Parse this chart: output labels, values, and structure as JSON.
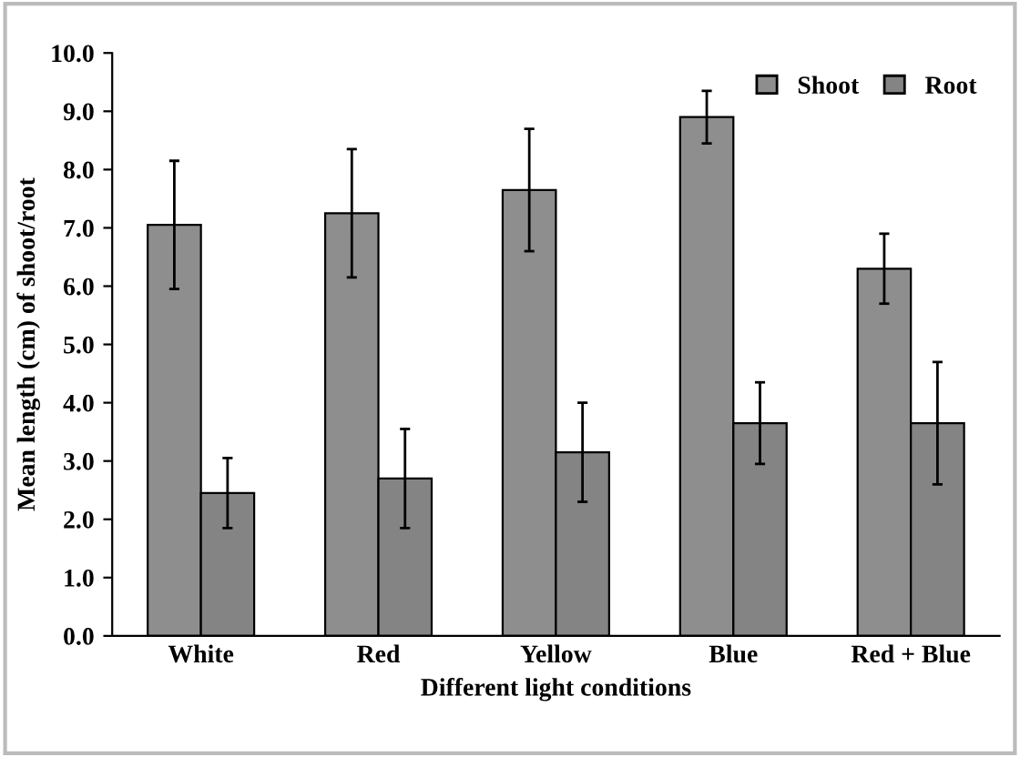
{
  "chart_data": {
    "type": "bar",
    "xlabel": "Different light conditions",
    "ylabel": "Mean length (cm) of shoot/root",
    "categories": [
      "White",
      "Red",
      "Yellow",
      "Blue",
      "Red + Blue"
    ],
    "series": [
      {
        "name": "Shoot",
        "color": "#8e8e8e",
        "values": [
          7.05,
          7.25,
          7.65,
          8.9,
          6.3
        ],
        "errors": [
          1.1,
          1.1,
          1.05,
          0.45,
          0.6
        ]
      },
      {
        "name": "Root",
        "color": "#848484",
        "values": [
          2.45,
          2.7,
          3.15,
          3.65,
          3.65
        ],
        "errors": [
          0.6,
          0.85,
          0.85,
          0.7,
          1.05
        ]
      }
    ],
    "ylim": [
      0,
      10
    ],
    "yticks": [
      {
        "value": 0,
        "label": "0.0"
      },
      {
        "value": 1,
        "label": "1.0"
      },
      {
        "value": 2,
        "label": "2.0"
      },
      {
        "value": 3,
        "label": "3.0"
      },
      {
        "value": 4,
        "label": "4.0"
      },
      {
        "value": 5,
        "label": "5.0"
      },
      {
        "value": 6,
        "label": "6.0"
      },
      {
        "value": 7,
        "label": "7.0"
      },
      {
        "value": 8,
        "label": "8.0"
      },
      {
        "value": 9,
        "label": "9.0"
      },
      {
        "value": 10,
        "label": "10.0"
      }
    ],
    "grid": false,
    "legend": "top right"
  }
}
